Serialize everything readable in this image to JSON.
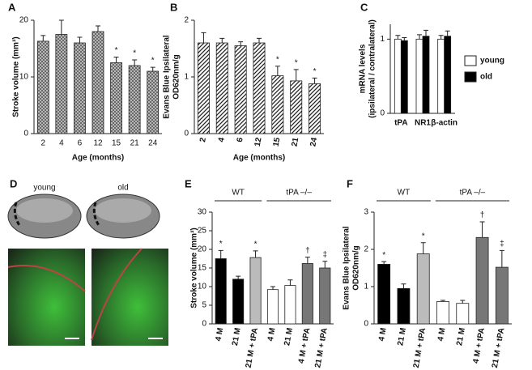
{
  "chart_data": [
    {
      "type": "bar",
      "panel": "A",
      "ylabel": [
        "Stroke volume (mm³)"
      ],
      "xlabel": "Age (months)",
      "categories": [
        "2",
        "4",
        "6",
        "12",
        "15",
        "21",
        "24"
      ],
      "values": [
        16.3,
        17.5,
        16,
        18,
        12.5,
        12,
        11
      ],
      "errors": [
        1,
        2.5,
        1,
        1,
        1,
        1,
        0.7
      ],
      "annotations": [
        null,
        null,
        null,
        null,
        "*",
        "*",
        "*"
      ],
      "color": "#999999",
      "pattern": "crosshatch",
      "ylim": [
        0,
        20
      ],
      "yticks": [
        0,
        10,
        20
      ]
    },
    {
      "type": "bar",
      "panel": "B",
      "ylabel": [
        "Evans Blue Ipsilateral",
        "OD620nm/g"
      ],
      "xlabel": "Age (months)",
      "categories": [
        "2",
        "4",
        "6",
        "12",
        "15",
        "21",
        "24"
      ],
      "values": [
        1.6,
        1.6,
        1.55,
        1.6,
        1.02,
        0.93,
        0.88
      ],
      "errors": [
        0.18,
        0.08,
        0.07,
        0.08,
        0.17,
        0.2,
        0.1
      ],
      "annotations": [
        null,
        null,
        null,
        null,
        "*",
        "*",
        "*"
      ],
      "color": "#444444",
      "pattern": "hatch",
      "rotate_labels": true,
      "ylim": [
        0,
        2
      ],
      "yticks": [
        0,
        1,
        2
      ]
    },
    {
      "type": "bar",
      "panel": "C",
      "ylabel": [
        "mRNA levels",
        "(ipsilateral / contralateral)"
      ],
      "categories": [
        "tPA",
        "NR1",
        "β-actin"
      ],
      "series": [
        {
          "name": "young",
          "color": "#ffffff",
          "values": [
            1,
            1,
            1
          ],
          "errors": [
            0.05,
            0.06,
            0.05
          ]
        },
        {
          "name": "old",
          "color": "#000000",
          "values": [
            0.98,
            1.04,
            1.04
          ],
          "errors": [
            0.04,
            0.08,
            0.07
          ]
        }
      ],
      "legend": "right",
      "ylim": [
        0,
        1.2
      ],
      "yticks": [
        0,
        1
      ]
    },
    {
      "type": "bar",
      "panel": "E",
      "ylabel": [
        "Stroke volume (mm³)"
      ],
      "categories": [
        "4 M",
        "21 M",
        "21 M + tPA",
        "4 M",
        "21 M",
        "4 M + tPA",
        "21 M + tPA"
      ],
      "groups": [
        {
          "name": "WT",
          "count": 3
        },
        {
          "name": "tPA –/–",
          "count": 4
        }
      ],
      "values": [
        17.5,
        12,
        17.8,
        9.2,
        10.3,
        16.2,
        15
      ],
      "errors": [
        2.2,
        0.8,
        1.8,
        0.8,
        1.5,
        1.7,
        1.8
      ],
      "annotations": [
        "*",
        null,
        "*",
        null,
        null,
        "†",
        "‡"
      ],
      "colors": [
        "#000000",
        "#000000",
        "#bbbbbb",
        "#ffffff",
        "#ffffff",
        "#777777",
        "#777777"
      ],
      "rotate_labels": true,
      "ylim": [
        0,
        30
      ],
      "yticks": [
        0,
        5,
        10,
        15,
        20,
        25,
        30
      ]
    },
    {
      "type": "bar",
      "panel": "F",
      "ylabel": [
        "Evans Blue Ipsilateral",
        "OD620nm/g"
      ],
      "categories": [
        "4 M",
        "21 M",
        "21 M + tPA",
        "4 M",
        "21 M",
        "4 M + tPA",
        "21 M + tPA"
      ],
      "groups": [
        {
          "name": "WT",
          "count": 3
        },
        {
          "name": "tPA –/–",
          "count": 4
        }
      ],
      "values": [
        1.6,
        0.95,
        1.88,
        0.6,
        0.55,
        2.32,
        1.52
      ],
      "errors": [
        0.07,
        0.12,
        0.3,
        0.03,
        0.08,
        0.42,
        0.45
      ],
      "annotations": [
        "*",
        null,
        "*",
        null,
        null,
        "†",
        "‡"
      ],
      "colors": [
        "#000000",
        "#000000",
        "#bbbbbb",
        "#ffffff",
        "#ffffff",
        "#777777",
        "#777777"
      ],
      "rotate_labels": true,
      "ylim": [
        0,
        3
      ],
      "yticks": [
        0,
        1,
        2,
        3
      ]
    }
  ],
  "images": {
    "panel": "D",
    "labels": [
      "young",
      "old"
    ]
  }
}
